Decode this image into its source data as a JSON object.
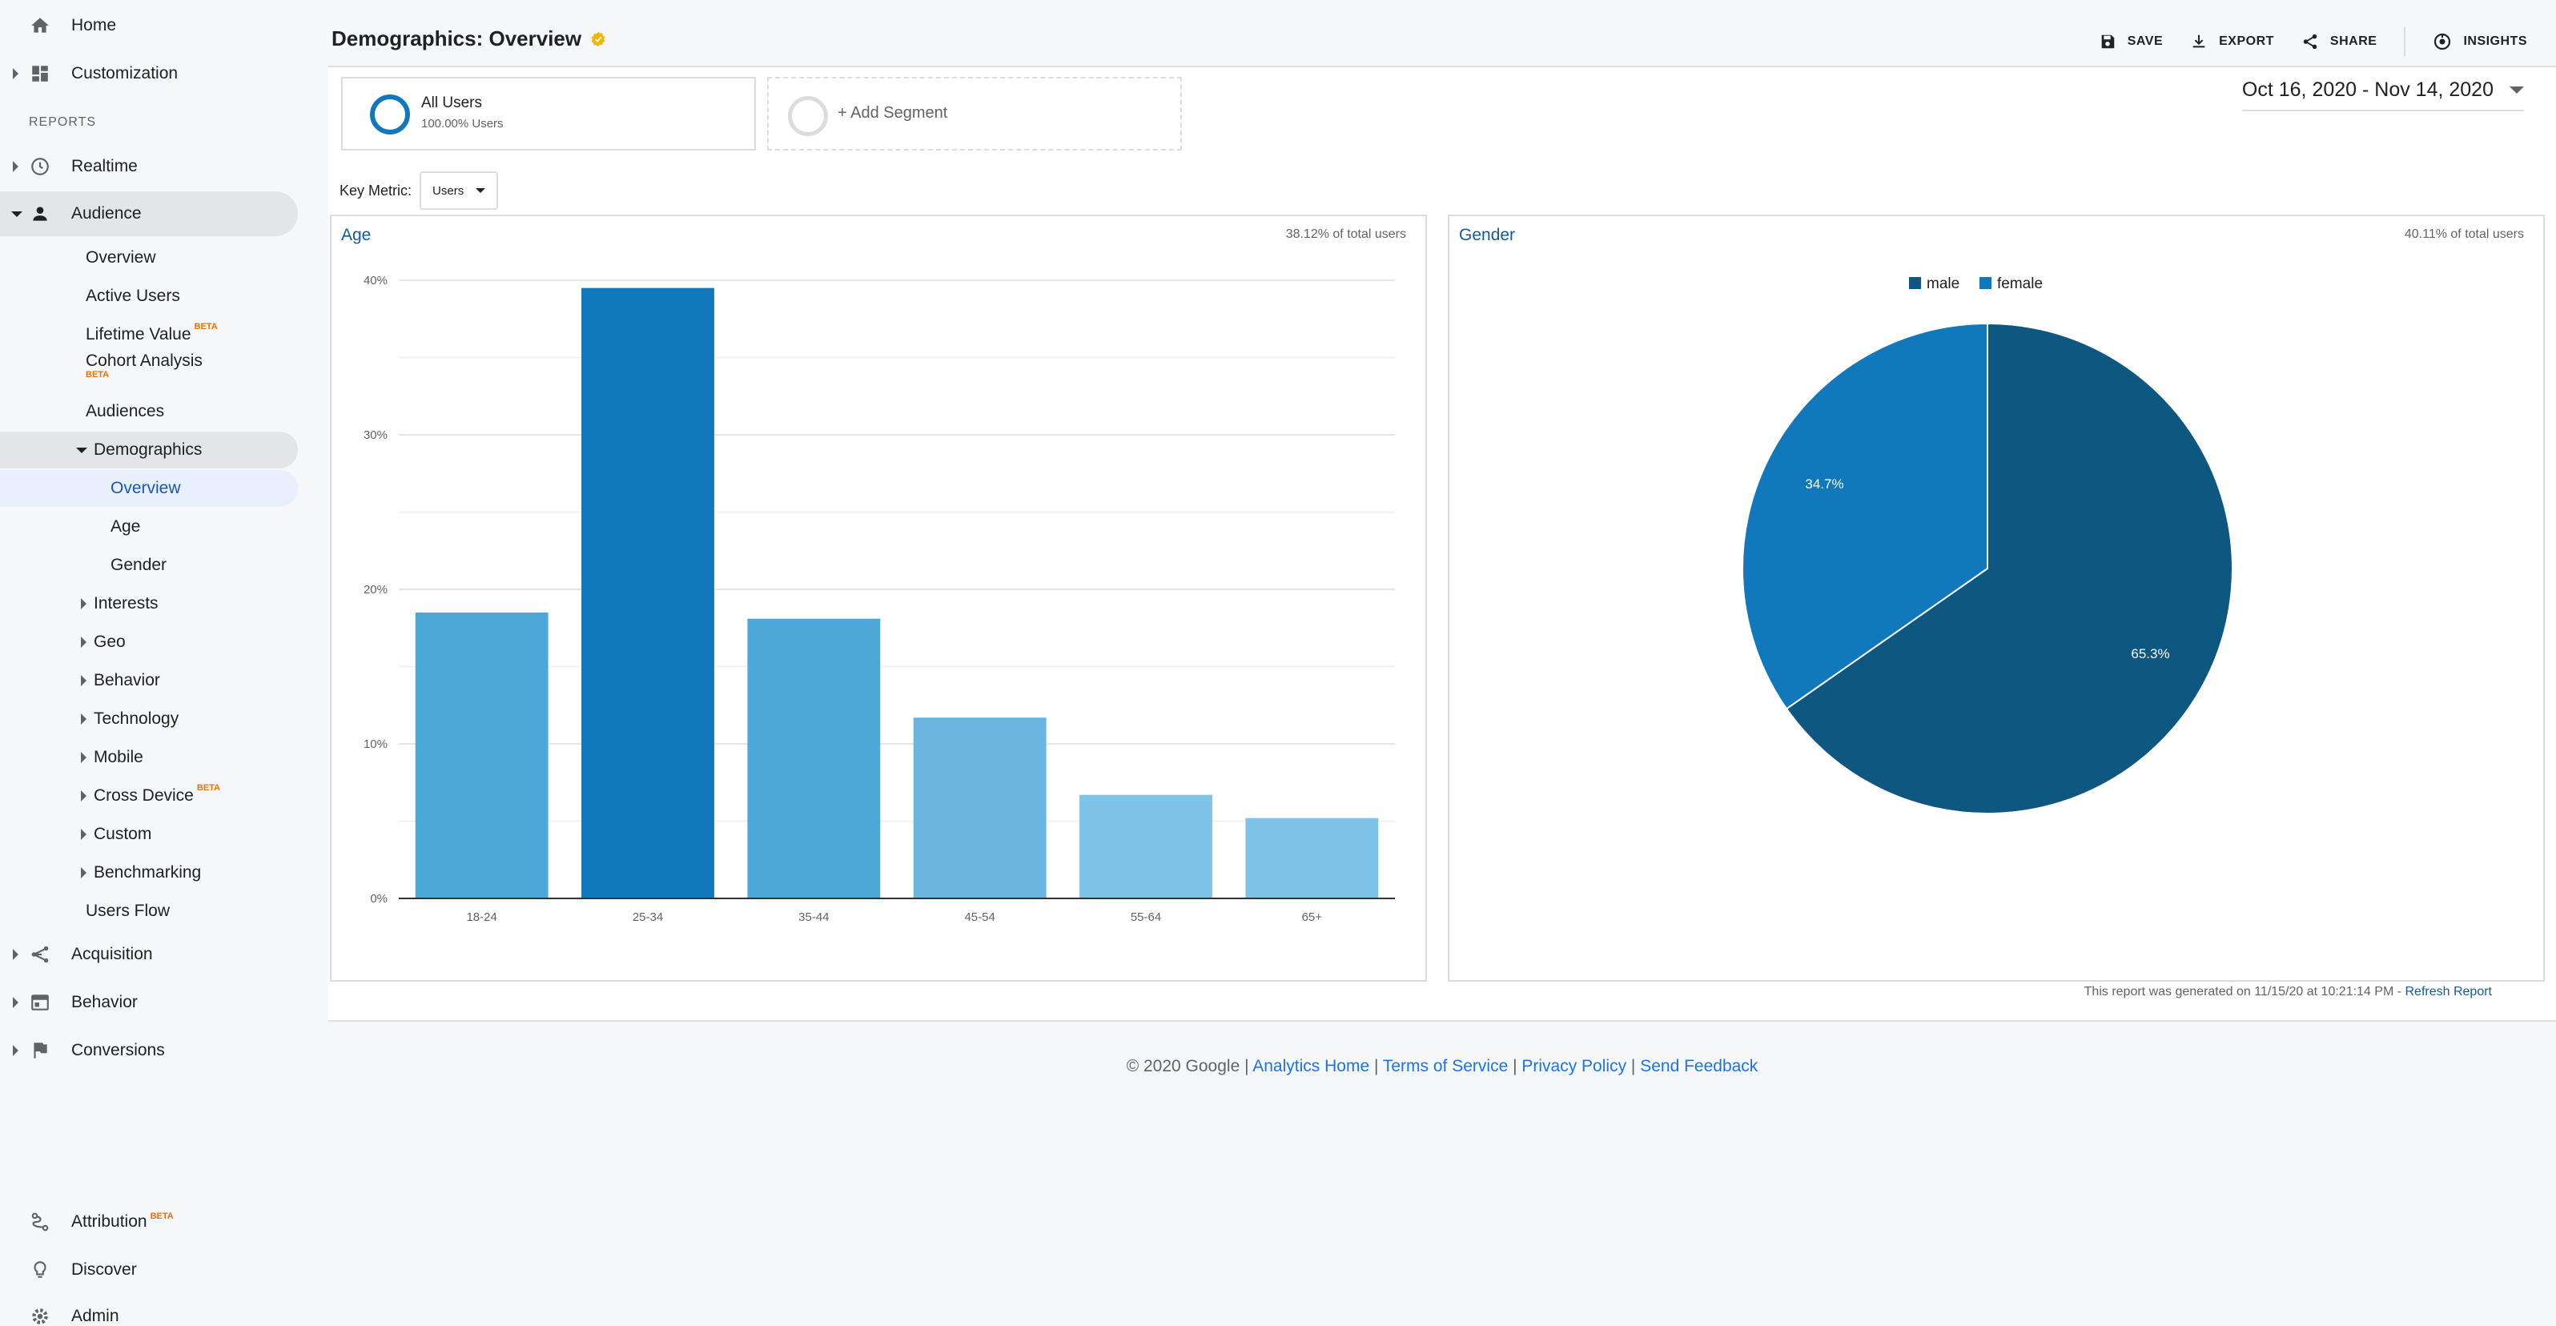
{
  "sidebar": {
    "home": "Home",
    "customization": "Customization",
    "reports_header": "REPORTS",
    "realtime": "Realtime",
    "audience": "Audience",
    "audience_items": {
      "overview": "Overview",
      "active_users": "Active Users",
      "lifetime_value": "Lifetime Value",
      "cohort_analysis": "Cohort Analysis",
      "audiences": "Audiences",
      "demographics": "Demographics",
      "demo_overview": "Overview",
      "demo_age": "Age",
      "demo_gender": "Gender",
      "interests": "Interests",
      "geo": "Geo",
      "behavior": "Behavior",
      "technology": "Technology",
      "mobile": "Mobile",
      "cross_device": "Cross Device",
      "custom": "Custom",
      "benchmarking": "Benchmarking",
      "users_flow": "Users Flow"
    },
    "acquisition": "Acquisition",
    "behavior": "Behavior",
    "conversions": "Conversions",
    "attribution": "Attribution",
    "discover": "Discover",
    "admin": "Admin",
    "beta_label": "BETA"
  },
  "header": {
    "title": "Demographics: Overview",
    "save": "SAVE",
    "export": "EXPORT",
    "share": "SHARE",
    "insights": "INSIGHTS"
  },
  "segments": {
    "all_users": "All Users",
    "all_users_pct": "100.00% Users",
    "add_segment": "+ Add Segment"
  },
  "date_range": "Oct 16, 2020 - Nov 14, 2020",
  "key_metric": {
    "label": "Key Metric:",
    "value": "Users"
  },
  "chart_data": [
    {
      "type": "bar",
      "title": "Age",
      "note": "38.12% of total users",
      "categories": [
        "18-24",
        "25-34",
        "35-44",
        "45-54",
        "55-64",
        "65+"
      ],
      "values": [
        18.5,
        39.5,
        18.1,
        11.7,
        6.7,
        5.2
      ],
      "colors": [
        "#4ba8d7",
        "#1178bb",
        "#4ba8d7",
        "#6ab6e0",
        "#80c3e8",
        "#80c3e8"
      ],
      "ylim": [
        0,
        40
      ],
      "yticks": [
        "0%",
        "10%",
        "20%",
        "30%",
        "40%"
      ],
      "grid": true
    },
    {
      "type": "pie",
      "title": "Gender",
      "note": "40.11% of total users",
      "labels": [
        "male",
        "female"
      ],
      "values": [
        65.3,
        34.7
      ],
      "value_labels": [
        "65.3%",
        "34.7%"
      ],
      "colors": [
        "#0e5781",
        "#1178bb"
      ],
      "legend": "top"
    }
  ],
  "report_footer": {
    "generated": "This report was generated on 11/15/20 at 10:21:14 PM - ",
    "refresh": "Refresh Report"
  },
  "copyright": {
    "text": "© 2020 Google | ",
    "analytics_home": "Analytics Home",
    "terms": "Terms of Service",
    "privacy": "Privacy Policy",
    "feedback": "Send Feedback",
    "sep": " | "
  }
}
